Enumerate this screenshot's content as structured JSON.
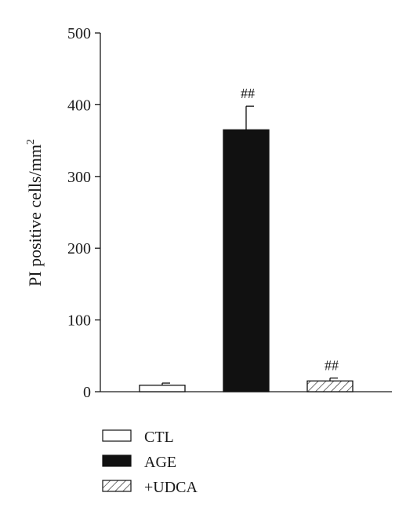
{
  "chart_data": {
    "type": "bar",
    "categories": [
      "CTL",
      "AGE",
      "+UDCA"
    ],
    "values": [
      9,
      365,
      15
    ],
    "errors": [
      3,
      33,
      4
    ],
    "annotations": [
      "",
      "##",
      "##"
    ],
    "fills": [
      "white",
      "black",
      "hatch"
    ],
    "ylabel_main": "PI positive cells/mm",
    "ylabel_sup": "2",
    "ylim": [
      0,
      500
    ],
    "yticks": [
      0,
      100,
      200,
      300,
      400,
      500
    ],
    "legend": [
      {
        "label": "CTL",
        "fill": "white"
      },
      {
        "label": "AGE",
        "fill": "black"
      },
      {
        "label": "+UDCA",
        "fill": "hatch"
      }
    ],
    "legend_position": "bottom-left",
    "grid": false
  },
  "colors": {
    "bar_black": "#111111",
    "axis": "#1a1a1a",
    "hatch": "#333333"
  }
}
